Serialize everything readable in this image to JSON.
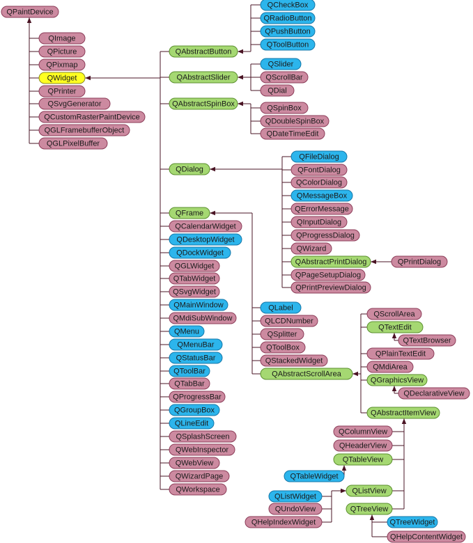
{
  "nodes": [
    {
      "label": "QPaintDevice"
    },
    {
      "label": "QImage"
    },
    {
      "label": "QPicture"
    },
    {
      "label": "QPixmap"
    },
    {
      "label": "QWidget"
    },
    {
      "label": "QPrinter"
    },
    {
      "label": "QSvgGenerator"
    },
    {
      "label": "QCustomRasterPaintDevice"
    },
    {
      "label": "QGLFramebufferObject"
    },
    {
      "label": "QGLPixelBuffer"
    },
    {
      "label": "QAbstractButton"
    },
    {
      "label": "QAbstractSlider"
    },
    {
      "label": "QAbstractSpinBox"
    },
    {
      "label": "QDialog"
    },
    {
      "label": "QFrame"
    },
    {
      "label": "QCalendarWidget"
    },
    {
      "label": "QDesktopWidget"
    },
    {
      "label": "QDockWidget"
    },
    {
      "label": "QGLWidget"
    },
    {
      "label": "QTabWidget"
    },
    {
      "label": "QSvgWidget"
    },
    {
      "label": "QMainWindow"
    },
    {
      "label": "QMdiSubWindow"
    },
    {
      "label": "QMenu"
    },
    {
      "label": "QMenuBar"
    },
    {
      "label": "QStatusBar"
    },
    {
      "label": "QToolBar"
    },
    {
      "label": "QTabBar"
    },
    {
      "label": "QProgressBar"
    },
    {
      "label": "QGroupBox"
    },
    {
      "label": "QLineEdit"
    },
    {
      "label": "QSplashScreen"
    },
    {
      "label": "QWebInspector"
    },
    {
      "label": "QWebView"
    },
    {
      "label": "QWizardPage"
    },
    {
      "label": "QWorkspace"
    },
    {
      "label": "QCheckBox"
    },
    {
      "label": "QRadioButton"
    },
    {
      "label": "QPushButton"
    },
    {
      "label": "QToolButton"
    },
    {
      "label": "QSlider"
    },
    {
      "label": "QScrollBar"
    },
    {
      "label": "QDial"
    },
    {
      "label": "QSpinBox"
    },
    {
      "label": "QDoubleSpinBox"
    },
    {
      "label": "QDateTimeEdit"
    },
    {
      "label": "QFileDialog"
    },
    {
      "label": "QFontDialog"
    },
    {
      "label": "QColorDialog"
    },
    {
      "label": "QMessageBox"
    },
    {
      "label": "QErrorMessage"
    },
    {
      "label": "QInputDialog"
    },
    {
      "label": "QProgressDialog"
    },
    {
      "label": "QWizard"
    },
    {
      "label": "QAbstractPrintDialog"
    },
    {
      "label": "QPageSetupDialog"
    },
    {
      "label": "QPrintPreviewDialog"
    },
    {
      "label": "QPrintDialog"
    },
    {
      "label": "QLabel"
    },
    {
      "label": "QLCDNumber"
    },
    {
      "label": "QSplitter"
    },
    {
      "label": "QToolBox"
    },
    {
      "label": "QStackedWidget"
    },
    {
      "label": "QAbstractScrollArea"
    },
    {
      "label": "QScrollArea"
    },
    {
      "label": "QTextEdit"
    },
    {
      "label": "QTextBrowser"
    },
    {
      "label": "QPlainTextEdit"
    },
    {
      "label": "QMdiArea"
    },
    {
      "label": "QGraphicsView"
    },
    {
      "label": "QDeclarativeView"
    },
    {
      "label": "QAbstractItemView"
    },
    {
      "label": "QColumnView"
    },
    {
      "label": "QHeaderView"
    },
    {
      "label": "QTableView"
    },
    {
      "label": "QTableWidget"
    },
    {
      "label": "QListView"
    },
    {
      "label": "QListWidget"
    },
    {
      "label": "QUndoView"
    },
    {
      "label": "QHelpIndexWidget"
    },
    {
      "label": "QTreeView"
    },
    {
      "label": "QTreeWidget"
    },
    {
      "label": "QHelpContentWidget"
    }
  ]
}
